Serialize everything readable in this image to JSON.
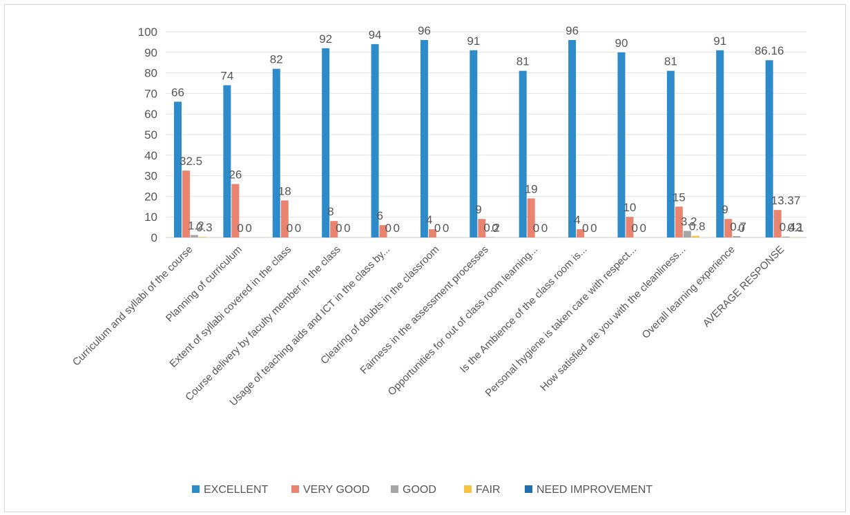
{
  "chart_data": {
    "type": "bar",
    "title": "",
    "xlabel": "",
    "ylabel": "",
    "ylim": [
      0,
      100
    ],
    "yticks": [
      0,
      10,
      20,
      30,
      40,
      50,
      60,
      70,
      80,
      90,
      100
    ],
    "grid": true,
    "legend_position": "bottom",
    "categories": [
      "Curriculum and syllabi of the course",
      "Planning of curriculum",
      "Extent of syllabi covered in the class",
      "Course delivery by faculty member in the class",
      "Usage of teaching aids and ICT in the class by...",
      "Clearing of doubts in the classroom",
      "Fairness in the assessment processes",
      "Opportunities for out of class room learning...",
      "Is the Ambience of the class room is...",
      "Personal hygiene is taken care with respect...",
      "How satisfied are you with the cleanliness...",
      "Overall learning experience",
      "AVERAGE RESPONSE"
    ],
    "series": [
      {
        "name": "EXCELLENT",
        "color": "#2e8bc9",
        "values": [
          66,
          74,
          82,
          92,
          94,
          96,
          91,
          81,
          96,
          90,
          81,
          91,
          86.16
        ],
        "labels": [
          "66",
          "74",
          "82",
          "92",
          "94",
          "96",
          "91",
          "81",
          "96",
          "90",
          "81",
          "91",
          "86.16"
        ]
      },
      {
        "name": "VERY GOOD",
        "color": "#e8846f",
        "values": [
          32.5,
          26,
          18,
          8,
          6,
          4,
          9,
          19,
          4,
          10,
          15,
          9,
          13.37
        ],
        "labels": [
          "32.5",
          "26",
          "18",
          "8",
          "6",
          "4",
          "9",
          "19",
          "4",
          "10",
          "15",
          "9",
          "13.37"
        ]
      },
      {
        "name": "GOOD",
        "color": "#a5a5a5",
        "values": [
          1.2,
          0,
          0,
          0,
          0,
          0,
          0.2,
          0,
          0,
          0,
          3.2,
          0.7,
          0.42
        ],
        "labels": [
          "1.2",
          "0",
          "0",
          "0",
          "0",
          "0",
          "0.2",
          "0",
          "0",
          "0",
          "3.2",
          "0.7",
          "0.42"
        ]
      },
      {
        "name": "FAIR",
        "color": "#f5c242",
        "values": [
          0.3,
          0,
          0,
          0,
          0,
          0,
          0,
          0,
          0,
          0,
          0.8,
          0,
          0.1
        ],
        "labels": [
          "0.3",
          "0",
          "0",
          "0",
          "0",
          "0",
          "0",
          "0",
          "0",
          "0",
          "0.8",
          "0",
          "0.1"
        ]
      },
      {
        "name": "NEED IMPROVEMENT",
        "color": "#1f6fb0",
        "values": [
          0,
          0,
          0,
          0,
          0,
          0,
          0,
          0,
          0,
          0,
          0,
          0,
          0
        ],
        "labels": []
      }
    ]
  }
}
